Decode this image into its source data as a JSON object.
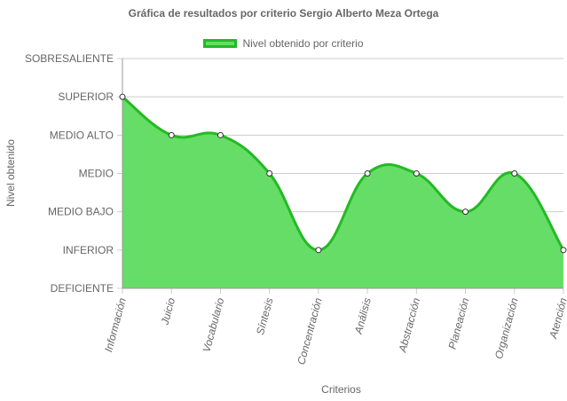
{
  "chart_data": {
    "type": "area",
    "title": "Gráfica de resultados por criterio Sergio Alberto Meza Ortega",
    "xlabel": "Criterios",
    "ylabel": "Nivel obtenido",
    "legend": "top",
    "grid": true,
    "y_levels": [
      "DEFICIENTE",
      "INFERIOR",
      "MEDIO BAJO",
      "MEDIO",
      "MEDIO ALTO",
      "SUPERIOR",
      "SOBRESALIENTE"
    ],
    "ylim": [
      0,
      6
    ],
    "categories": [
      "Información",
      "Juicio",
      "Vocabulario",
      "Síntesis",
      "Concentración",
      "Análisis",
      "Abstracción",
      "Planeación",
      "Organización",
      "Atención"
    ],
    "series": [
      {
        "name": "Nivel obtenido por criterio",
        "values": [
          5,
          4,
          4,
          3,
          1,
          3,
          3,
          2,
          3,
          1
        ],
        "fill_color": "#66dd66",
        "line_color": "#22bb22"
      }
    ]
  }
}
